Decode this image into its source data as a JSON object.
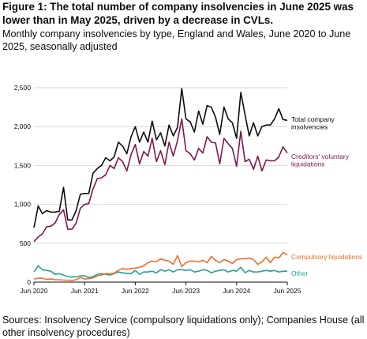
{
  "figure": {
    "title": "Figure 1: The total number of company insolvencies in June 2025 was lower than in May 2025, driven by a decrease in CVLs.",
    "subtitle": "Monthly company insolvencies by type, England and Wales, June 2020 to June 2025, seasonally adjusted",
    "source": "Sources: Insolvency Service (compulsory liquidations only); Companies House (all other insolvency procedures)"
  },
  "chart_data": {
    "type": "line",
    "title": "",
    "xlabel": "",
    "ylabel": "",
    "ylim": [
      0,
      2500
    ],
    "yticks": [
      0,
      500,
      1000,
      1500,
      2000,
      2500
    ],
    "ytick_labels": [
      "0",
      "500",
      "1,000",
      "1,500",
      "2,000",
      "2,500"
    ],
    "xlim": [
      "2020-06",
      "2025-06"
    ],
    "xticks": [
      "2020-06",
      "2021-06",
      "2022-06",
      "2023-06",
      "2024-06",
      "2025-06"
    ],
    "xtick_labels": [
      "Jun 2020",
      "Jun 2021",
      "Jun 2022",
      "Jun 2023",
      "Jun 2024",
      "Jun 2025"
    ],
    "grid": "horizontal",
    "legend": "direct labels at line ends",
    "start_month": "2020-06",
    "series": [
      {
        "name": "Total company insolvencies",
        "label": "Total company insolvencies",
        "color": "#0b0c0c",
        "values": [
          700,
          980,
          880,
          920,
          900,
          900,
          910,
          1220,
          800,
          800,
          920,
          1130,
          1140,
          1140,
          1400,
          1460,
          1500,
          1600,
          1560,
          1610,
          1800,
          1750,
          1650,
          1870,
          2000,
          1800,
          1930,
          1800,
          2070,
          1830,
          1920,
          1750,
          2020,
          1880,
          1990,
          2490,
          2100,
          2060,
          1930,
          2200,
          2030,
          2270,
          2250,
          2120,
          1900,
          2250,
          2100,
          2050,
          1850,
          2440,
          2150,
          1880,
          2050,
          1880,
          2000,
          2020,
          2020,
          2100,
          2230,
          2090,
          2080
        ]
      },
      {
        "name": "Creditors' voluntary liquidations",
        "label": "Creditors' voluntary liquidations",
        "color": "#801650",
        "values": [
          520,
          580,
          620,
          710,
          720,
          760,
          870,
          930,
          680,
          680,
          760,
          950,
          1000,
          1010,
          1200,
          1330,
          1340,
          1380,
          1500,
          1460,
          1600,
          1550,
          1430,
          1640,
          1770,
          1520,
          1680,
          1620,
          1850,
          1550,
          1690,
          1510,
          1800,
          1620,
          1820,
          2100,
          1690,
          1650,
          1570,
          1720,
          1660,
          1870,
          1800,
          1790,
          1520,
          1850,
          1780,
          1720,
          1490,
          1940,
          1550,
          1580,
          1450,
          1620,
          1430,
          1570,
          1560,
          1560,
          1610,
          1740,
          1660
        ]
      },
      {
        "name": "Compulsory liquidations",
        "label": "Compulsory liquidations",
        "color": "#f46a25",
        "values": [
          40,
          50,
          50,
          35,
          40,
          30,
          30,
          25,
          25,
          20,
          30,
          60,
          40,
          45,
          55,
          80,
          90,
          110,
          105,
          115,
          150,
          175,
          165,
          175,
          180,
          190,
          210,
          250,
          270,
          260,
          300,
          280,
          270,
          230,
          340,
          200,
          250,
          270,
          270,
          260,
          280,
          250,
          330,
          280,
          250,
          290,
          270,
          240,
          290,
          300,
          300,
          310,
          290,
          230,
          260,
          320,
          250,
          320,
          310,
          380,
          350
        ]
      },
      {
        "name": "Other",
        "label": "Other",
        "color": "#28a197",
        "values": [
          130,
          210,
          160,
          150,
          140,
          100,
          110,
          90,
          70,
          65,
          70,
          80,
          80,
          60,
          70,
          100,
          110,
          100,
          90,
          110,
          130,
          120,
          110,
          110,
          150,
          100,
          130,
          130,
          140,
          120,
          160,
          140,
          160,
          130,
          160,
          160,
          150,
          160,
          130,
          140,
          160,
          150,
          120,
          140,
          150,
          160,
          130,
          150,
          140,
          190,
          120,
          150,
          130,
          130,
          140,
          150,
          140,
          150,
          130,
          140,
          140
        ]
      }
    ]
  }
}
